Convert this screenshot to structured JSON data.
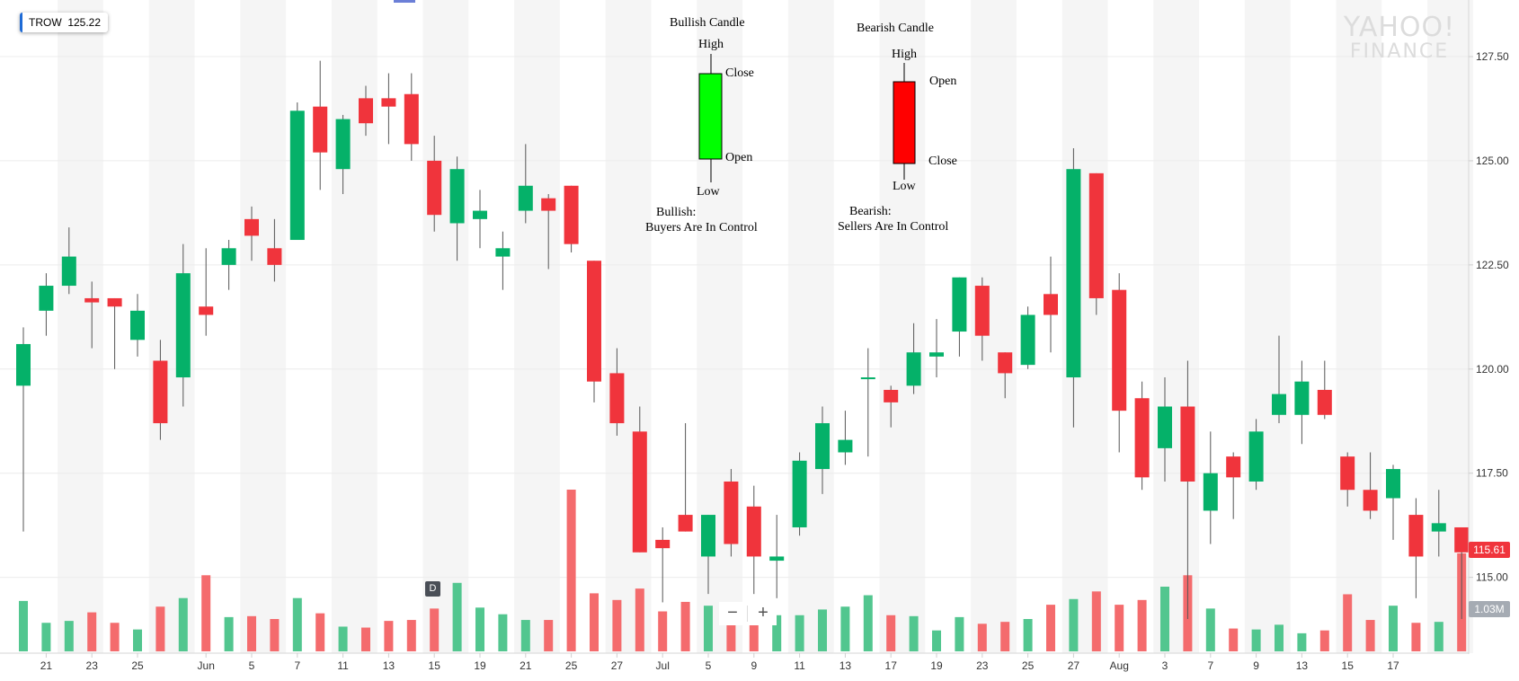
{
  "ticker": {
    "symbol": "TROW",
    "price": "125.22"
  },
  "watermark": {
    "line1": "YAHOO!",
    "line2": "FINANCE"
  },
  "last_price_tag": "115.61",
  "volume_tag": "1.03M",
  "event_marker": "D",
  "zoom": {
    "out": "−",
    "in": "+"
  },
  "colors": {
    "up": "#05b169",
    "down": "#f0343c",
    "up_volume": "#52c68f",
    "down_volume": "#f46b6d",
    "band": "#f5f5f5",
    "legend_up": "#00ff00",
    "legend_down": "#ff0000"
  },
  "legend": {
    "bullish": {
      "title": "Bullish Candle",
      "high": "High",
      "close": "Close",
      "open": "Open",
      "low": "Low",
      "caption1": "Bullish:",
      "caption2": "Buyers Are In Control"
    },
    "bearish": {
      "title": "Bearish Candle",
      "high": "High",
      "open": "Open",
      "close": "Close",
      "low": "Low",
      "caption1": "Bearish:",
      "caption2": "Sellers Are In Control"
    }
  },
  "chart_data": {
    "type": "candlestick",
    "ylim": [
      112.9,
      128.6
    ],
    "y_ticks": [
      "127.50",
      "125.00",
      "122.50",
      "120.00",
      "117.50",
      "115.00"
    ],
    "x_ticks": [
      {
        "i": 1,
        "label": "21"
      },
      {
        "i": 3,
        "label": "23"
      },
      {
        "i": 5,
        "label": "25"
      },
      {
        "i": 8,
        "label": "Jun"
      },
      {
        "i": 10,
        "label": "5"
      },
      {
        "i": 12,
        "label": "7"
      },
      {
        "i": 14,
        "label": "11"
      },
      {
        "i": 16,
        "label": "13"
      },
      {
        "i": 18,
        "label": "15"
      },
      {
        "i": 20,
        "label": "19"
      },
      {
        "i": 22,
        "label": "21"
      },
      {
        "i": 24,
        "label": "25"
      },
      {
        "i": 26,
        "label": "27"
      },
      {
        "i": 28,
        "label": "Jul"
      },
      {
        "i": 30,
        "label": "5"
      },
      {
        "i": 32,
        "label": "9"
      },
      {
        "i": 34,
        "label": "11"
      },
      {
        "i": 36,
        "label": "13"
      },
      {
        "i": 38,
        "label": "17"
      },
      {
        "i": 40,
        "label": "19"
      },
      {
        "i": 42,
        "label": "23"
      },
      {
        "i": 44,
        "label": "25"
      },
      {
        "i": 46,
        "label": "27"
      },
      {
        "i": 48,
        "label": "Aug"
      },
      {
        "i": 50,
        "label": "3"
      },
      {
        "i": 52,
        "label": "7"
      },
      {
        "i": 54,
        "label": "9"
      },
      {
        "i": 56,
        "label": "13"
      },
      {
        "i": 58,
        "label": "15"
      },
      {
        "i": 60,
        "label": "17"
      }
    ],
    "candles": [
      {
        "o": 119.6,
        "h": 121.0,
        "l": 116.1,
        "c": 120.6
      },
      {
        "o": 121.4,
        "h": 122.3,
        "l": 120.8,
        "c": 122.0
      },
      {
        "o": 122.0,
        "h": 123.4,
        "l": 121.8,
        "c": 122.7
      },
      {
        "o": 121.7,
        "h": 122.1,
        "l": 120.5,
        "c": 121.6
      },
      {
        "o": 121.7,
        "h": 121.7,
        "l": 120.0,
        "c": 121.5
      },
      {
        "o": 120.7,
        "h": 121.8,
        "l": 120.3,
        "c": 121.4
      },
      {
        "o": 120.2,
        "h": 120.7,
        "l": 118.3,
        "c": 118.7
      },
      {
        "o": 119.8,
        "h": 123.0,
        "l": 119.1,
        "c": 122.3
      },
      {
        "o": 121.5,
        "h": 122.9,
        "l": 120.8,
        "c": 121.3
      },
      {
        "o": 122.5,
        "h": 123.1,
        "l": 121.9,
        "c": 122.9
      },
      {
        "o": 123.6,
        "h": 123.9,
        "l": 122.6,
        "c": 123.2
      },
      {
        "o": 122.9,
        "h": 123.6,
        "l": 122.1,
        "c": 122.5
      },
      {
        "o": 123.1,
        "h": 126.4,
        "l": 123.1,
        "c": 126.2
      },
      {
        "o": 126.3,
        "h": 127.4,
        "l": 124.3,
        "c": 125.2
      },
      {
        "o": 124.8,
        "h": 126.1,
        "l": 124.2,
        "c": 126.0
      },
      {
        "o": 126.5,
        "h": 126.8,
        "l": 125.6,
        "c": 125.9
      },
      {
        "o": 126.5,
        "h": 127.1,
        "l": 125.4,
        "c": 126.3
      },
      {
        "o": 126.6,
        "h": 127.1,
        "l": 125.0,
        "c": 125.4
      },
      {
        "o": 125.0,
        "h": 125.6,
        "l": 123.3,
        "c": 123.7
      },
      {
        "o": 123.5,
        "h": 125.1,
        "l": 122.6,
        "c": 124.8
      },
      {
        "o": 123.6,
        "h": 124.3,
        "l": 122.9,
        "c": 123.8
      },
      {
        "o": 122.7,
        "h": 123.3,
        "l": 121.9,
        "c": 122.9
      },
      {
        "o": 123.8,
        "h": 125.4,
        "l": 123.5,
        "c": 124.4
      },
      {
        "o": 124.1,
        "h": 124.2,
        "l": 122.4,
        "c": 123.8
      },
      {
        "o": 124.4,
        "h": 124.4,
        "l": 122.8,
        "c": 123.0
      },
      {
        "o": 122.6,
        "h": 122.6,
        "l": 119.2,
        "c": 119.7
      },
      {
        "o": 119.9,
        "h": 120.5,
        "l": 118.4,
        "c": 118.7
      },
      {
        "o": 118.5,
        "h": 119.1,
        "l": 115.6,
        "c": 115.6
      },
      {
        "o": 115.9,
        "h": 116.2,
        "l": 114.4,
        "c": 115.7
      },
      {
        "o": 116.5,
        "h": 118.7,
        "l": 116.1,
        "c": 116.1
      },
      {
        "o": 115.5,
        "h": 116.5,
        "l": 114.6,
        "c": 116.5
      },
      {
        "o": 117.3,
        "h": 117.6,
        "l": 115.5,
        "c": 115.8
      },
      {
        "o": 116.7,
        "h": 117.2,
        "l": 114.6,
        "c": 115.5
      },
      {
        "o": 115.4,
        "h": 116.5,
        "l": 114.5,
        "c": 115.5
      },
      {
        "o": 116.2,
        "h": 118.0,
        "l": 116.0,
        "c": 117.8
      },
      {
        "o": 117.6,
        "h": 119.1,
        "l": 117.0,
        "c": 118.7
      },
      {
        "o": 118.0,
        "h": 119.0,
        "l": 117.7,
        "c": 118.3
      },
      {
        "o": 119.8,
        "h": 120.5,
        "l": 117.9,
        "c": 119.8
      },
      {
        "o": 119.5,
        "h": 119.6,
        "l": 118.6,
        "c": 119.2
      },
      {
        "o": 119.6,
        "h": 121.1,
        "l": 119.4,
        "c": 120.4
      },
      {
        "o": 120.3,
        "h": 121.2,
        "l": 119.8,
        "c": 120.4
      },
      {
        "o": 120.9,
        "h": 122.2,
        "l": 120.3,
        "c": 122.2
      },
      {
        "o": 122.0,
        "h": 122.2,
        "l": 120.2,
        "c": 120.8
      },
      {
        "o": 120.4,
        "h": 120.4,
        "l": 119.3,
        "c": 119.9
      },
      {
        "o": 120.1,
        "h": 121.5,
        "l": 120.0,
        "c": 121.3
      },
      {
        "o": 121.8,
        "h": 122.7,
        "l": 120.4,
        "c": 121.3
      },
      {
        "o": 119.8,
        "h": 125.3,
        "l": 118.6,
        "c": 124.8
      },
      {
        "o": 124.7,
        "h": 124.7,
        "l": 121.3,
        "c": 121.7
      },
      {
        "o": 121.9,
        "h": 122.3,
        "l": 118.0,
        "c": 119.0
      },
      {
        "o": 119.3,
        "h": 119.7,
        "l": 117.1,
        "c": 117.4
      },
      {
        "o": 118.1,
        "h": 119.8,
        "l": 117.3,
        "c": 119.1
      },
      {
        "o": 119.1,
        "h": 120.2,
        "l": 114.0,
        "c": 117.3
      },
      {
        "o": 116.6,
        "h": 118.5,
        "l": 115.8,
        "c": 117.5
      },
      {
        "o": 117.9,
        "h": 118.0,
        "l": 116.4,
        "c": 117.4
      },
      {
        "o": 117.3,
        "h": 118.8,
        "l": 117.1,
        "c": 118.5
      },
      {
        "o": 118.9,
        "h": 120.8,
        "l": 118.7,
        "c": 119.4
      },
      {
        "o": 118.9,
        "h": 120.2,
        "l": 118.2,
        "c": 119.7
      },
      {
        "o": 119.5,
        "h": 120.2,
        "l": 118.8,
        "c": 118.9
      },
      {
        "o": 117.9,
        "h": 118.0,
        "l": 116.7,
        "c": 117.1
      },
      {
        "o": 117.1,
        "h": 118.0,
        "l": 116.4,
        "c": 116.6
      },
      {
        "o": 116.9,
        "h": 117.7,
        "l": 115.9,
        "c": 117.6
      },
      {
        "o": 116.5,
        "h": 116.9,
        "l": 114.5,
        "c": 115.5
      },
      {
        "o": 116.1,
        "h": 117.1,
        "l": 115.5,
        "c": 116.3
      },
      {
        "o": 116.2,
        "h": 116.2,
        "l": 114.0,
        "c": 115.6
      }
    ],
    "volume": [
      0.53,
      0.3,
      0.32,
      0.41,
      0.3,
      0.23,
      0.47,
      0.56,
      0.8,
      0.36,
      0.37,
      0.34,
      0.56,
      0.4,
      0.26,
      0.25,
      0.32,
      0.33,
      0.45,
      0.72,
      0.46,
      0.39,
      0.33,
      0.33,
      1.7,
      0.61,
      0.54,
      0.66,
      0.42,
      0.52,
      0.48,
      0.41,
      0.38,
      0.38,
      0.38,
      0.44,
      0.47,
      0.59,
      0.38,
      0.37,
      0.22,
      0.36,
      0.29,
      0.31,
      0.34,
      0.49,
      0.55,
      0.63,
      0.49,
      0.54,
      0.68,
      0.8,
      0.45,
      0.24,
      0.23,
      0.28,
      0.19,
      0.22,
      0.6,
      0.33,
      0.48,
      0.3,
      0.31,
      1.03
    ]
  }
}
